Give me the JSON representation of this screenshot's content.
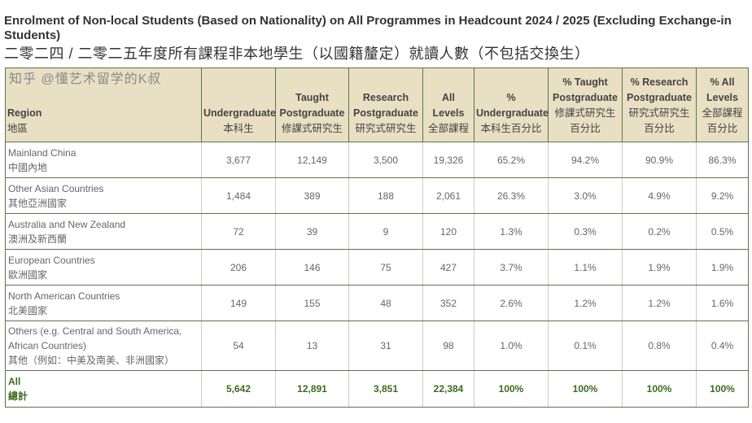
{
  "title": "Enrolment of Non-local Students (Based on Nationality) on All Programmes in Headcount 2024 / 2025 (Excluding Exchange-in Students)",
  "title_zh": "二零二四 / 二零二五年度所有課程非本地學生（以國籍釐定）就讀人數（不包括交換生）",
  "headers": [
    {
      "en": "Region",
      "zh": "地區"
    },
    {
      "en": "Undergraduate",
      "zh": "本科生"
    },
    {
      "en": "Taught Postgraduate",
      "zh": "修課式研究生"
    },
    {
      "en": "Research Postgraduate",
      "zh": "研究式研究生"
    },
    {
      "en": "All Levels",
      "zh": "全部課程"
    },
    {
      "en": "% Undergraduate",
      "zh": "本科生百分比"
    },
    {
      "en": "% Taught Postgraduate",
      "zh": "修課式研究生 百分比"
    },
    {
      "en": "% Research Postgraduate",
      "zh": "研究式研究生 百分比"
    },
    {
      "en": "% All Levels",
      "zh": "全部課程 百分比"
    }
  ],
  "rows": [
    {
      "en": "Mainland China",
      "zh": "中國內地",
      "values": [
        "3,677",
        "12,149",
        "3,500",
        "19,326",
        "65.2%",
        "94.2%",
        "90.9%",
        "86.3%"
      ]
    },
    {
      "en": "Other Asian Countries",
      "zh": "其他亞洲國家",
      "values": [
        "1,484",
        "389",
        "188",
        "2,061",
        "26.3%",
        "3.0%",
        "4.9%",
        "9.2%"
      ]
    },
    {
      "en": "Australia and New Zealand",
      "zh": "澳洲及新西蘭",
      "values": [
        "72",
        "39",
        "9",
        "120",
        "1.3%",
        "0.3%",
        "0.2%",
        "0.5%"
      ]
    },
    {
      "en": "European Countries",
      "zh": "歐洲國家",
      "values": [
        "206",
        "146",
        "75",
        "427",
        "3.7%",
        "1.1%",
        "1.9%",
        "1.9%"
      ]
    },
    {
      "en": "North American Countries",
      "zh": "北美國家",
      "values": [
        "149",
        "155",
        "48",
        "352",
        "2.6%",
        "1.2%",
        "1.2%",
        "1.6%"
      ]
    },
    {
      "en": "Others (e.g. Central and South America, African Countries)",
      "zh": "其他（例如：中美及南美、非洲國家）",
      "values": [
        "54",
        "13",
        "31",
        "98",
        "1.0%",
        "0.1%",
        "0.8%",
        "0.4%"
      ]
    }
  ],
  "total": {
    "en": "All",
    "zh": "總計",
    "values": [
      "5,642",
      "12,891",
      "3,851",
      "22,384",
      "100%",
      "100%",
      "100%",
      "100%"
    ]
  },
  "watermark": "知乎 @懂艺术留学的K叔",
  "colors": {
    "header_bg": "#e9dfc3",
    "border": "#5b7548",
    "total_text": "#3d6b1e"
  }
}
